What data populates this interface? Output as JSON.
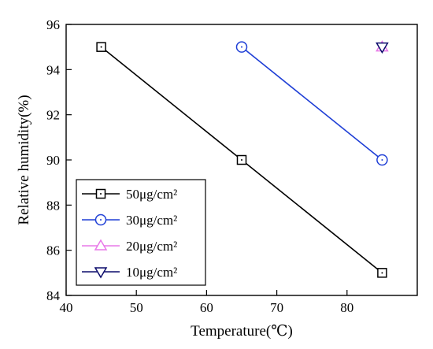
{
  "chart_data": {
    "type": "line",
    "xlabel": "Temperature(℃)",
    "ylabel": "Relative humidity(%)",
    "xlim": [
      40,
      90
    ],
    "ylim": [
      84,
      96
    ],
    "xticks": [
      40,
      50,
      60,
      70,
      80
    ],
    "yticks": [
      84,
      86,
      88,
      90,
      92,
      94,
      96
    ],
    "grid": false,
    "legend_position": "bottom-left",
    "series": [
      {
        "name": "50μg/cm²",
        "color": "#000000",
        "marker": "square",
        "x": [
          45,
          65,
          85
        ],
        "y": [
          95,
          90,
          85
        ]
      },
      {
        "name": "30μg/cm²",
        "color": "#1f3fd6",
        "marker": "circle",
        "x": [
          65,
          85
        ],
        "y": [
          95,
          90
        ]
      },
      {
        "name": "20μg/cm²",
        "color": "#e879e8",
        "marker": "triangle-up",
        "x": [
          85
        ],
        "y": [
          95
        ]
      },
      {
        "name": "10μg/cm²",
        "color": "#0b0b6b",
        "marker": "triangle-down",
        "x": [
          85
        ],
        "y": [
          95
        ]
      }
    ]
  }
}
